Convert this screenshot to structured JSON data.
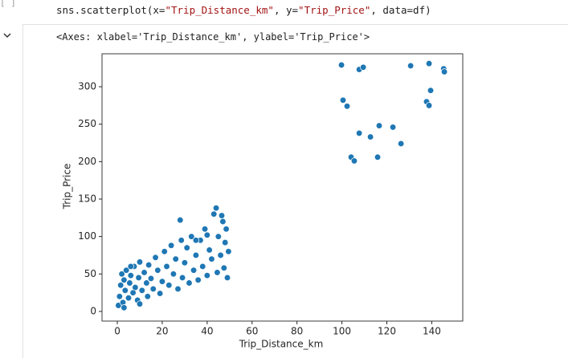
{
  "cell": {
    "prompt": "[ ]",
    "code": [
      "sns.scatterplot(x=",
      "\"Trip_Distance_km\"",
      ", y=",
      "\"Trip_Price\"",
      ", data=df)"
    ]
  },
  "output": {
    "text": "<Axes: xlabel='Trip_Distance_km', ylabel='Trip_Price'>"
  },
  "chart_data": {
    "type": "scatter",
    "x_label": "Trip_Distance_km",
    "y_label": "Trip_Price",
    "color": "#1f77b4",
    "xlim": [
      -6.8,
      153.8
    ],
    "ylim": [
      -12.9,
      344
    ],
    "xticks": [
      0,
      20,
      40,
      60,
      80,
      100,
      120,
      140
    ],
    "yticks": [
      0,
      50,
      100,
      150,
      200,
      250,
      300
    ],
    "x": [
      99.8,
      100.5,
      102.3,
      107.7,
      109.5,
      130.6,
      138.8,
      145.3,
      145.6,
      139.5,
      137.7,
      138.8,
      107.7,
      112.7,
      116.6,
      122.7,
      126.3,
      104.1,
      105.5,
      115.9,
      0.5,
      1,
      1.5,
      2,
      2.5,
      3,
      3.5,
      4,
      5,
      5.5,
      6,
      7,
      7.5,
      8,
      9,
      9.5,
      10,
      11,
      12,
      13,
      13.5,
      14,
      15,
      16,
      17,
      18,
      19,
      20,
      21,
      22,
      23,
      24,
      25,
      26,
      27,
      28,
      28.5,
      29,
      30,
      31,
      32,
      33,
      34,
      35,
      36,
      37,
      38,
      39,
      40,
      41,
      42,
      43,
      44,
      44.5,
      45,
      46,
      47,
      47.5,
      48,
      49,
      49.5,
      48.5,
      46.5,
      3,
      6,
      40,
      35,
      10
    ],
    "y": [
      329,
      282,
      274,
      323,
      326,
      328,
      331,
      324,
      320,
      295,
      280,
      275,
      238,
      233,
      248,
      246,
      224,
      206,
      201,
      206,
      8,
      20,
      35,
      50,
      12,
      42,
      28,
      55,
      18,
      38,
      48,
      25,
      60,
      32,
      15,
      45,
      66,
      28,
      52,
      38,
      20,
      62,
      44,
      30,
      72,
      55,
      24,
      40,
      80,
      60,
      35,
      88,
      50,
      70,
      30,
      122,
      95,
      45,
      65,
      85,
      38,
      100,
      55,
      75,
      42,
      95,
      60,
      110,
      48,
      82,
      70,
      130,
      138,
      52,
      100,
      75,
      120,
      58,
      92,
      45,
      80,
      110,
      128,
      5,
      60,
      102,
      95,
      10
    ]
  }
}
